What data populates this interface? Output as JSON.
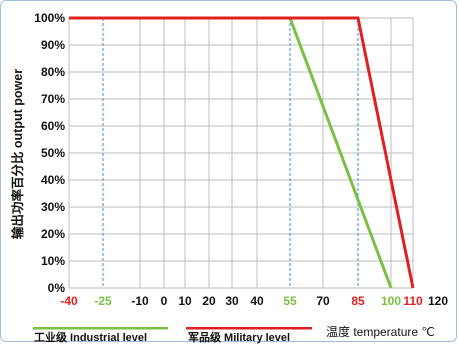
{
  "chart_data": {
    "type": "line",
    "ylabel": "输出功率百分比 output power",
    "xlabel": "温度 temperature ℃",
    "xlim": [
      -40,
      120
    ],
    "ylim": [
      0,
      100
    ],
    "x_ticks": [
      {
        "value": -40,
        "label": "-40",
        "color": "#e02020"
      },
      {
        "value": -25,
        "label": "-25",
        "color": "#7ac143"
      },
      {
        "value": -10,
        "label": "-10",
        "color": "#111111"
      },
      {
        "value": 0,
        "label": "0",
        "color": "#111111"
      },
      {
        "value": 10,
        "label": "10",
        "color": "#111111"
      },
      {
        "value": 20,
        "label": "20",
        "color": "#111111"
      },
      {
        "value": 30,
        "label": "30",
        "color": "#111111"
      },
      {
        "value": 40,
        "label": "40",
        "color": "#111111"
      },
      {
        "value": 55,
        "label": "55",
        "color": "#7ac143"
      },
      {
        "value": 70,
        "label": "70",
        "color": "#111111"
      },
      {
        "value": 85,
        "label": "85",
        "color": "#e02020"
      },
      {
        "value": 100,
        "label": "100",
        "color": "#7ac143"
      },
      {
        "value": 110,
        "label": "110",
        "color": "#e02020"
      },
      {
        "value": 120,
        "label": "120",
        "color": "#111111"
      }
    ],
    "y_ticks": [
      "0%",
      "10%",
      "20%",
      "30%",
      "40%",
      "50%",
      "60%",
      "70%",
      "80%",
      "90%",
      "100%"
    ],
    "grid": true,
    "dashed_markers": [
      -25,
      55,
      85
    ],
    "series": [
      {
        "name": "工业级 Industrial level",
        "color": "#7ac143",
        "x": [
          -25,
          55,
          100
        ],
        "y": [
          100,
          100,
          0
        ]
      },
      {
        "name": "军品级 Military level",
        "color": "#e02020",
        "x": [
          -40,
          85,
          110
        ],
        "y": [
          100,
          100,
          0
        ]
      }
    ],
    "legend_position": "bottom"
  }
}
